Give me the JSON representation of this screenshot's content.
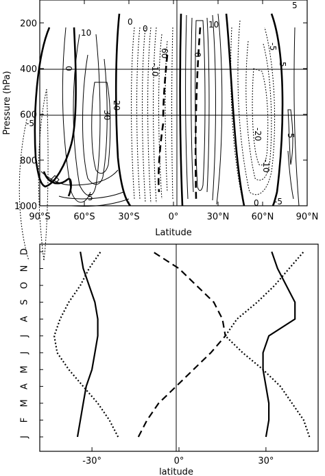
{
  "chart_data": [
    {
      "type": "contour",
      "xlabel": "Latitude",
      "ylabel": "Pressure (hPa)",
      "xlim": [
        -90,
        90
      ],
      "ylim": [
        1000,
        100
      ],
      "x_ticks": [
        -90,
        -60,
        -30,
        0,
        30,
        60,
        90
      ],
      "x_tick_labels": [
        "90°S",
        "60°S",
        "30°S",
        "0°",
        "30°N",
        "60°N",
        "90°N"
      ],
      "y_ticks": [
        200,
        400,
        600,
        800,
        1000
      ],
      "y_tick_labels": [
        "200",
        "400",
        "600",
        "800",
        "1000"
      ],
      "reference_pressures": [
        400,
        600
      ],
      "contour_labels": [
        "10",
        "0",
        "0",
        "10",
        "5",
        "30",
        "20",
        "-5",
        "5",
        "60",
        "0",
        "-10",
        "0",
        "5",
        "-5",
        "-20",
        "-10",
        "5",
        "0",
        "-5"
      ],
      "centers": [
        {
          "lat": -55,
          "p": 650,
          "sign": "positive",
          "peak": 30
        },
        {
          "lat": -10,
          "p": 600,
          "sign": "negative",
          "peak": -60
        },
        {
          "lat": 13,
          "p": 500,
          "sign": "positive",
          "peak": 50
        },
        {
          "lat": 47,
          "p": 550,
          "sign": "negative",
          "peak": -20
        },
        {
          "lat": -80,
          "p": 500,
          "sign": "negative",
          "peak": -5
        },
        {
          "lat": 83,
          "p": 600,
          "sign": "positive",
          "peak": 5
        }
      ]
    },
    {
      "type": "line",
      "xlabel": "latitude",
      "ylabel": "",
      "xlim": [
        -48,
        48
      ],
      "x_ticks": [
        -30,
        0,
        30
      ],
      "x_tick_labels": [
        "-30°",
        "0°",
        "30°"
      ],
      "months": [
        "J",
        "F",
        "M",
        "A",
        "M",
        "J",
        "J",
        "A",
        "S",
        "O",
        "N",
        "D"
      ],
      "series": [
        {
          "style": "solid",
          "values": [
            -35,
            -34,
            -33,
            -32,
            -30,
            -29,
            -28,
            -28,
            -29,
            -31,
            -33,
            -34
          ]
        },
        {
          "style": "dotted",
          "values": [
            -21,
            -24,
            -28,
            -33,
            -38,
            -42,
            -43,
            -41,
            -38,
            -34,
            -31,
            -27
          ]
        },
        {
          "style": "dashed",
          "values": [
            -14,
            -11,
            -7,
            -1,
            5,
            11,
            16,
            15,
            12,
            6,
            0,
            -9
          ]
        },
        {
          "style": "solid",
          "values": [
            30,
            31,
            31,
            30,
            29,
            29,
            31,
            40,
            40,
            37,
            34,
            32
          ]
        },
        {
          "style": "dotted",
          "values": [
            45,
            43,
            39,
            35,
            29,
            22,
            16,
            20,
            27,
            33,
            38,
            43
          ]
        }
      ]
    }
  ]
}
